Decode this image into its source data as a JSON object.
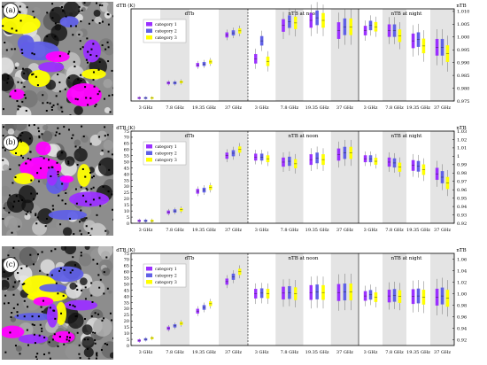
{
  "colors": {
    "category1": "#9b30ff",
    "category2": "#6060e6",
    "category3": "#ffff00",
    "shade": "#e4e4e4"
  },
  "panels": [
    {
      "tag": "(a)",
      "seed": 3,
      "left_label": "dTB (K)",
      "right_label": "nTB",
      "section_titles": [
        "dTb",
        "nTB at noon",
        "nTB at night"
      ],
      "categories": [
        "3 GHz",
        "7.8 GHz",
        "19.35 GHz",
        "37 GHz"
      ],
      "legend": [
        "category 1",
        "category 2",
        "category 3"
      ],
      "left_ticks": [],
      "right_ticks": [
        "1.010",
        "1.005",
        "1.000",
        "0.995",
        "0.990",
        "0.985",
        "0.980",
        "0.975"
      ],
      "mapColors": [
        "#ffff00",
        "#9b30ff",
        "#6060e6",
        "#ff00ff"
      ]
    },
    {
      "tag": "(b)",
      "seed": 7,
      "left_label": "dTB (K)",
      "right_label": "nTB",
      "section_titles": [
        "dTb",
        "nTB at noon",
        "nTB at night"
      ],
      "categories": [
        "3 GHz",
        "7.8 GHz",
        "19.35 GHz",
        "37 GHz"
      ],
      "legend": [
        "category 1",
        "category 2",
        "category 3"
      ],
      "left_ticks": [
        "75",
        "70",
        "65",
        "60",
        "55",
        "50",
        "45",
        "40",
        "35",
        "30",
        "25",
        "20",
        "15",
        "10",
        "5",
        "0"
      ],
      "right_ticks": [
        "1.03",
        "1.02",
        "1.01",
        "1",
        "0.99",
        "0.98",
        "0.97",
        "0.96",
        "0.95",
        "0.94",
        "0.93",
        "0.92"
      ],
      "mapColors": [
        "#ff00ff",
        "#9b30ff",
        "#ffff00",
        "#6060e6"
      ]
    },
    {
      "tag": "(c)",
      "seed": 11,
      "left_label": "dTB (K)",
      "right_label": "nTB",
      "section_titles": [
        "dTb",
        "nTB at noon",
        "nTB at night"
      ],
      "categories": [
        "3 GHz",
        "7.8 GHz",
        "19.35 GHz",
        "37 GHz"
      ],
      "legend": [
        "category 1",
        "category 2",
        "category 3"
      ],
      "left_ticks": [
        "75",
        "70",
        "65",
        "60",
        "55",
        "50",
        "45",
        "40",
        "35",
        "30",
        "25",
        "20",
        "15",
        "10",
        "5",
        "0"
      ],
      "right_ticks": [
        "1.06",
        "1.04",
        "1.02",
        "1.00",
        "0.98",
        "0.96",
        "0.94",
        "0.92"
      ],
      "mapColors": [
        "#ffff00",
        "#6060e6",
        "#ff00ff",
        "#9b30ff"
      ]
    }
  ],
  "chart_data": [
    {
      "type": "box",
      "panel": "a",
      "groups": {
        "dTb": {
          "category 1": [
            1,
            16,
            34,
            64
          ],
          "category 2": [
            1,
            16,
            35,
            66
          ],
          "category 3": [
            1,
            17,
            37,
            68
          ]
        },
        "nTB at noon": {
          "category 1": [
            0.9915,
            1.0045,
            1.0065,
            1.0025
          ],
          "category 2": [
            0.9985,
            1.006,
            1.0075,
            1.004
          ],
          "category 3": [
            0.9905,
            1.0055,
            1.0065,
            1.004
          ]
        },
        "nTB at night": {
          "category 1": [
            1.0025,
            1.0025,
            0.9985,
            0.996
          ],
          "category 2": [
            1.0045,
            1.0025,
            0.999,
            0.996
          ],
          "category 3": [
            1.004,
            1.0005,
            0.9965,
            0.9935
          ]
        }
      }
    },
    {
      "type": "box",
      "panel": "b",
      "groups": {
        "dTb": {
          "category 1": [
            2,
            9,
            26,
            55
          ],
          "category 2": [
            2,
            10,
            27,
            57
          ],
          "category 3": [
            2,
            11,
            29,
            60
          ]
        },
        "nTB at noon": {
          "category 1": [
            0.999,
            0.993,
            0.996,
            1.002
          ],
          "category 2": [
            0.999,
            0.994,
            0.998,
            1.004
          ],
          "category 3": [
            0.997,
            0.991,
            0.996,
            1.004
          ]
        },
        "nTB at night": {
          "category 1": [
            0.997,
            0.993,
            0.989,
            0.979
          ],
          "category 2": [
            0.997,
            0.992,
            0.988,
            0.975
          ],
          "category 3": [
            0.994,
            0.987,
            0.984,
            0.968
          ]
        }
      }
    },
    {
      "type": "box",
      "panel": "c",
      "groups": {
        "dTb": {
          "category 1": [
            4,
            14,
            28,
            52
          ],
          "category 2": [
            5,
            16,
            31,
            56
          ],
          "category 3": [
            6,
            18,
            34,
            60
          ]
        },
        "nTB at noon": {
          "category 1": [
            1.0,
            1.001,
            1.002,
            1.002
          ],
          "category 2": [
            1.001,
            1.002,
            1.003,
            1.003
          ],
          "category 3": [
            1.0,
            1.0,
            1.002,
            1.003
          ]
        },
        "nTB at night": {
          "category 1": [
            0.996,
            0.996,
            0.995,
            0.994
          ],
          "category 2": [
            0.998,
            0.997,
            0.996,
            0.996
          ],
          "category 3": [
            0.994,
            0.995,
            0.994,
            0.992
          ]
        }
      }
    }
  ]
}
